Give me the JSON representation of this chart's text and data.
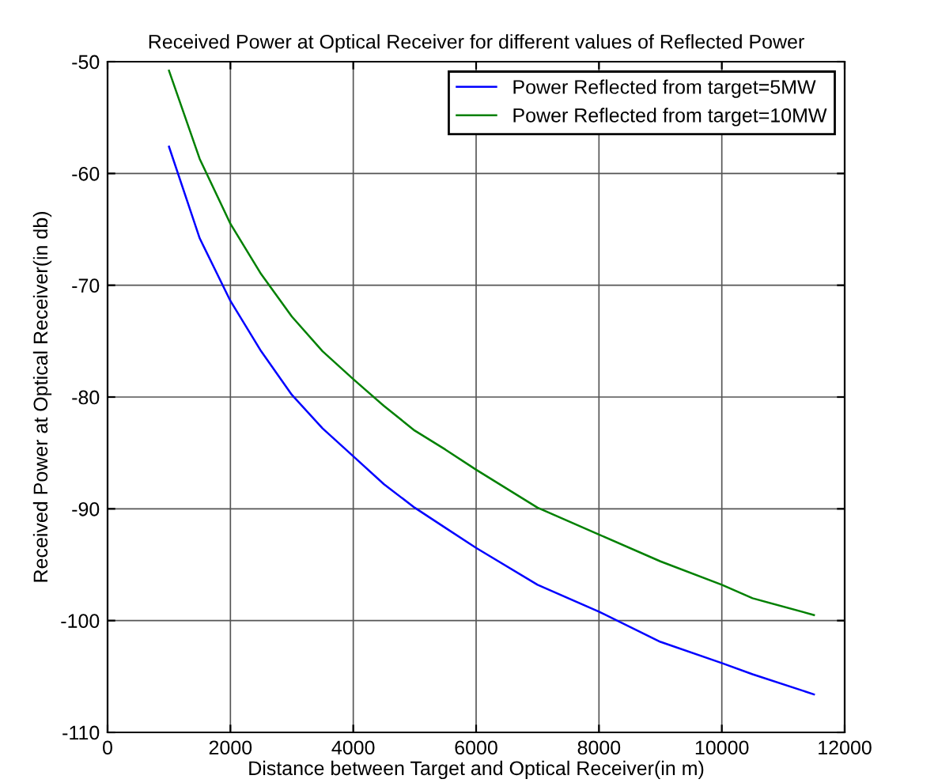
{
  "chart_data": {
    "type": "line",
    "title": "Received Power at Optical Receiver for different values of Reflected Power",
    "xlabel": "Distance between Target and Optical Receiver(in m)",
    "ylabel": "Received Power at Optical Receiver(in db)",
    "x": [
      1000,
      1500,
      2000,
      2500,
      3000,
      3500,
      4000,
      4500,
      5000,
      5500,
      6000,
      7000,
      8000,
      9000,
      10000,
      10500,
      11500
    ],
    "series": [
      {
        "name": "Power Reflected from target=5MW",
        "color": "#0000ff",
        "values": [
          -57.6,
          -65.8,
          -71.4,
          -75.9,
          -79.8,
          -82.8,
          -85.3,
          -87.8,
          -89.9,
          -91.7,
          -93.5,
          -96.8,
          -99.2,
          -101.9,
          -103.8,
          -104.8,
          -106.6
        ]
      },
      {
        "name": "Power Reflected from target=10MW",
        "color": "#008000",
        "values": [
          -50.8,
          -58.7,
          -64.5,
          -69.0,
          -72.8,
          -75.9,
          -78.4,
          -80.8,
          -83.0,
          -84.7,
          -86.5,
          -89.9,
          -92.3,
          -94.7,
          -96.8,
          -98.0,
          -99.5
        ]
      }
    ],
    "xlim": [
      0,
      12000
    ],
    "ylim": [
      -110,
      -50
    ],
    "xticks": [
      0,
      2000,
      4000,
      6000,
      8000,
      10000,
      12000
    ],
    "yticks": [
      -110,
      -100,
      -90,
      -80,
      -70,
      -60,
      -50
    ],
    "grid": true,
    "legend": "top right",
    "marker": "none",
    "line_style": "solid"
  }
}
